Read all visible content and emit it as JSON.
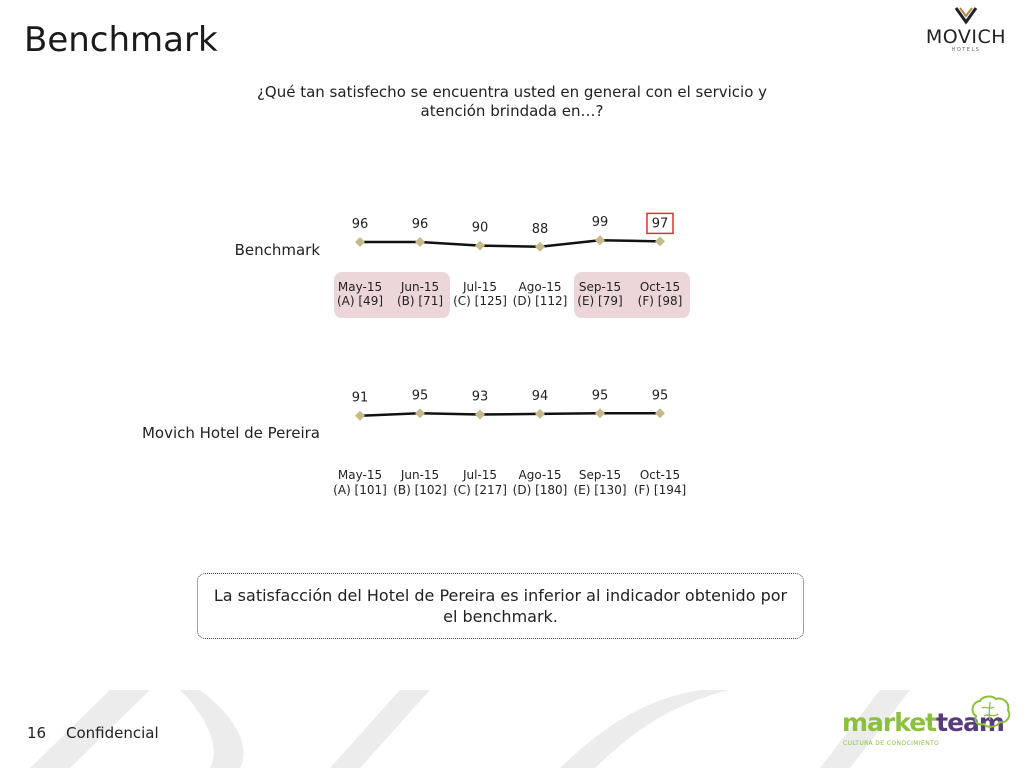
{
  "page": {
    "title": "Benchmark",
    "question": "¿Qué tan satisfecho se encuentra usted en general con el servicio y atención brindada en…?",
    "brand_name": "MOVICH",
    "brand_sub": "HOTELS",
    "callout": "La satisfacción del Hotel de Pereira es inferior al indicador obtenido por el benchmark.",
    "footer_page": "16",
    "footer_label": "Confidencial",
    "footer_logo_a": "market",
    "footer_logo_b": "team",
    "footer_tagline": "CULTURA DE CONOCIMIENTO"
  },
  "colors": {
    "line": "#111111",
    "marker": "#c8b98a",
    "highlight_fill": "#ecd6d9",
    "highlight_box": "#d9342b",
    "watermark": "#ececec"
  },
  "chart_data": [
    {
      "type": "line",
      "name": "Benchmark",
      "x": [
        "May-15",
        "Jun-15",
        "Jul-15",
        "Ago-15",
        "Sep-15",
        "Oct-15"
      ],
      "bases": [
        "(A) [49]",
        "(B) [71]",
        "(C) [125]",
        "(D) [112]",
        "(E) [79]",
        "(F) [98]"
      ],
      "values": [
        96,
        96,
        90,
        88,
        99,
        97
      ],
      "shaded_groups": [
        [
          0,
          1
        ],
        [
          4,
          5
        ]
      ],
      "boxed_index": 5,
      "grid": false
    },
    {
      "type": "line",
      "name": "Movich Hotel de Pereira",
      "x": [
        "May-15",
        "Jun-15",
        "Jul-15",
        "Ago-15",
        "Sep-15",
        "Oct-15"
      ],
      "bases": [
        "(A) [101]",
        "(B) [102]",
        "(C) [217]",
        "(D) [180]",
        "(E) [130]",
        "(F) [194]"
      ],
      "values": [
        91,
        95,
        93,
        94,
        95,
        95
      ],
      "grid": false
    }
  ]
}
